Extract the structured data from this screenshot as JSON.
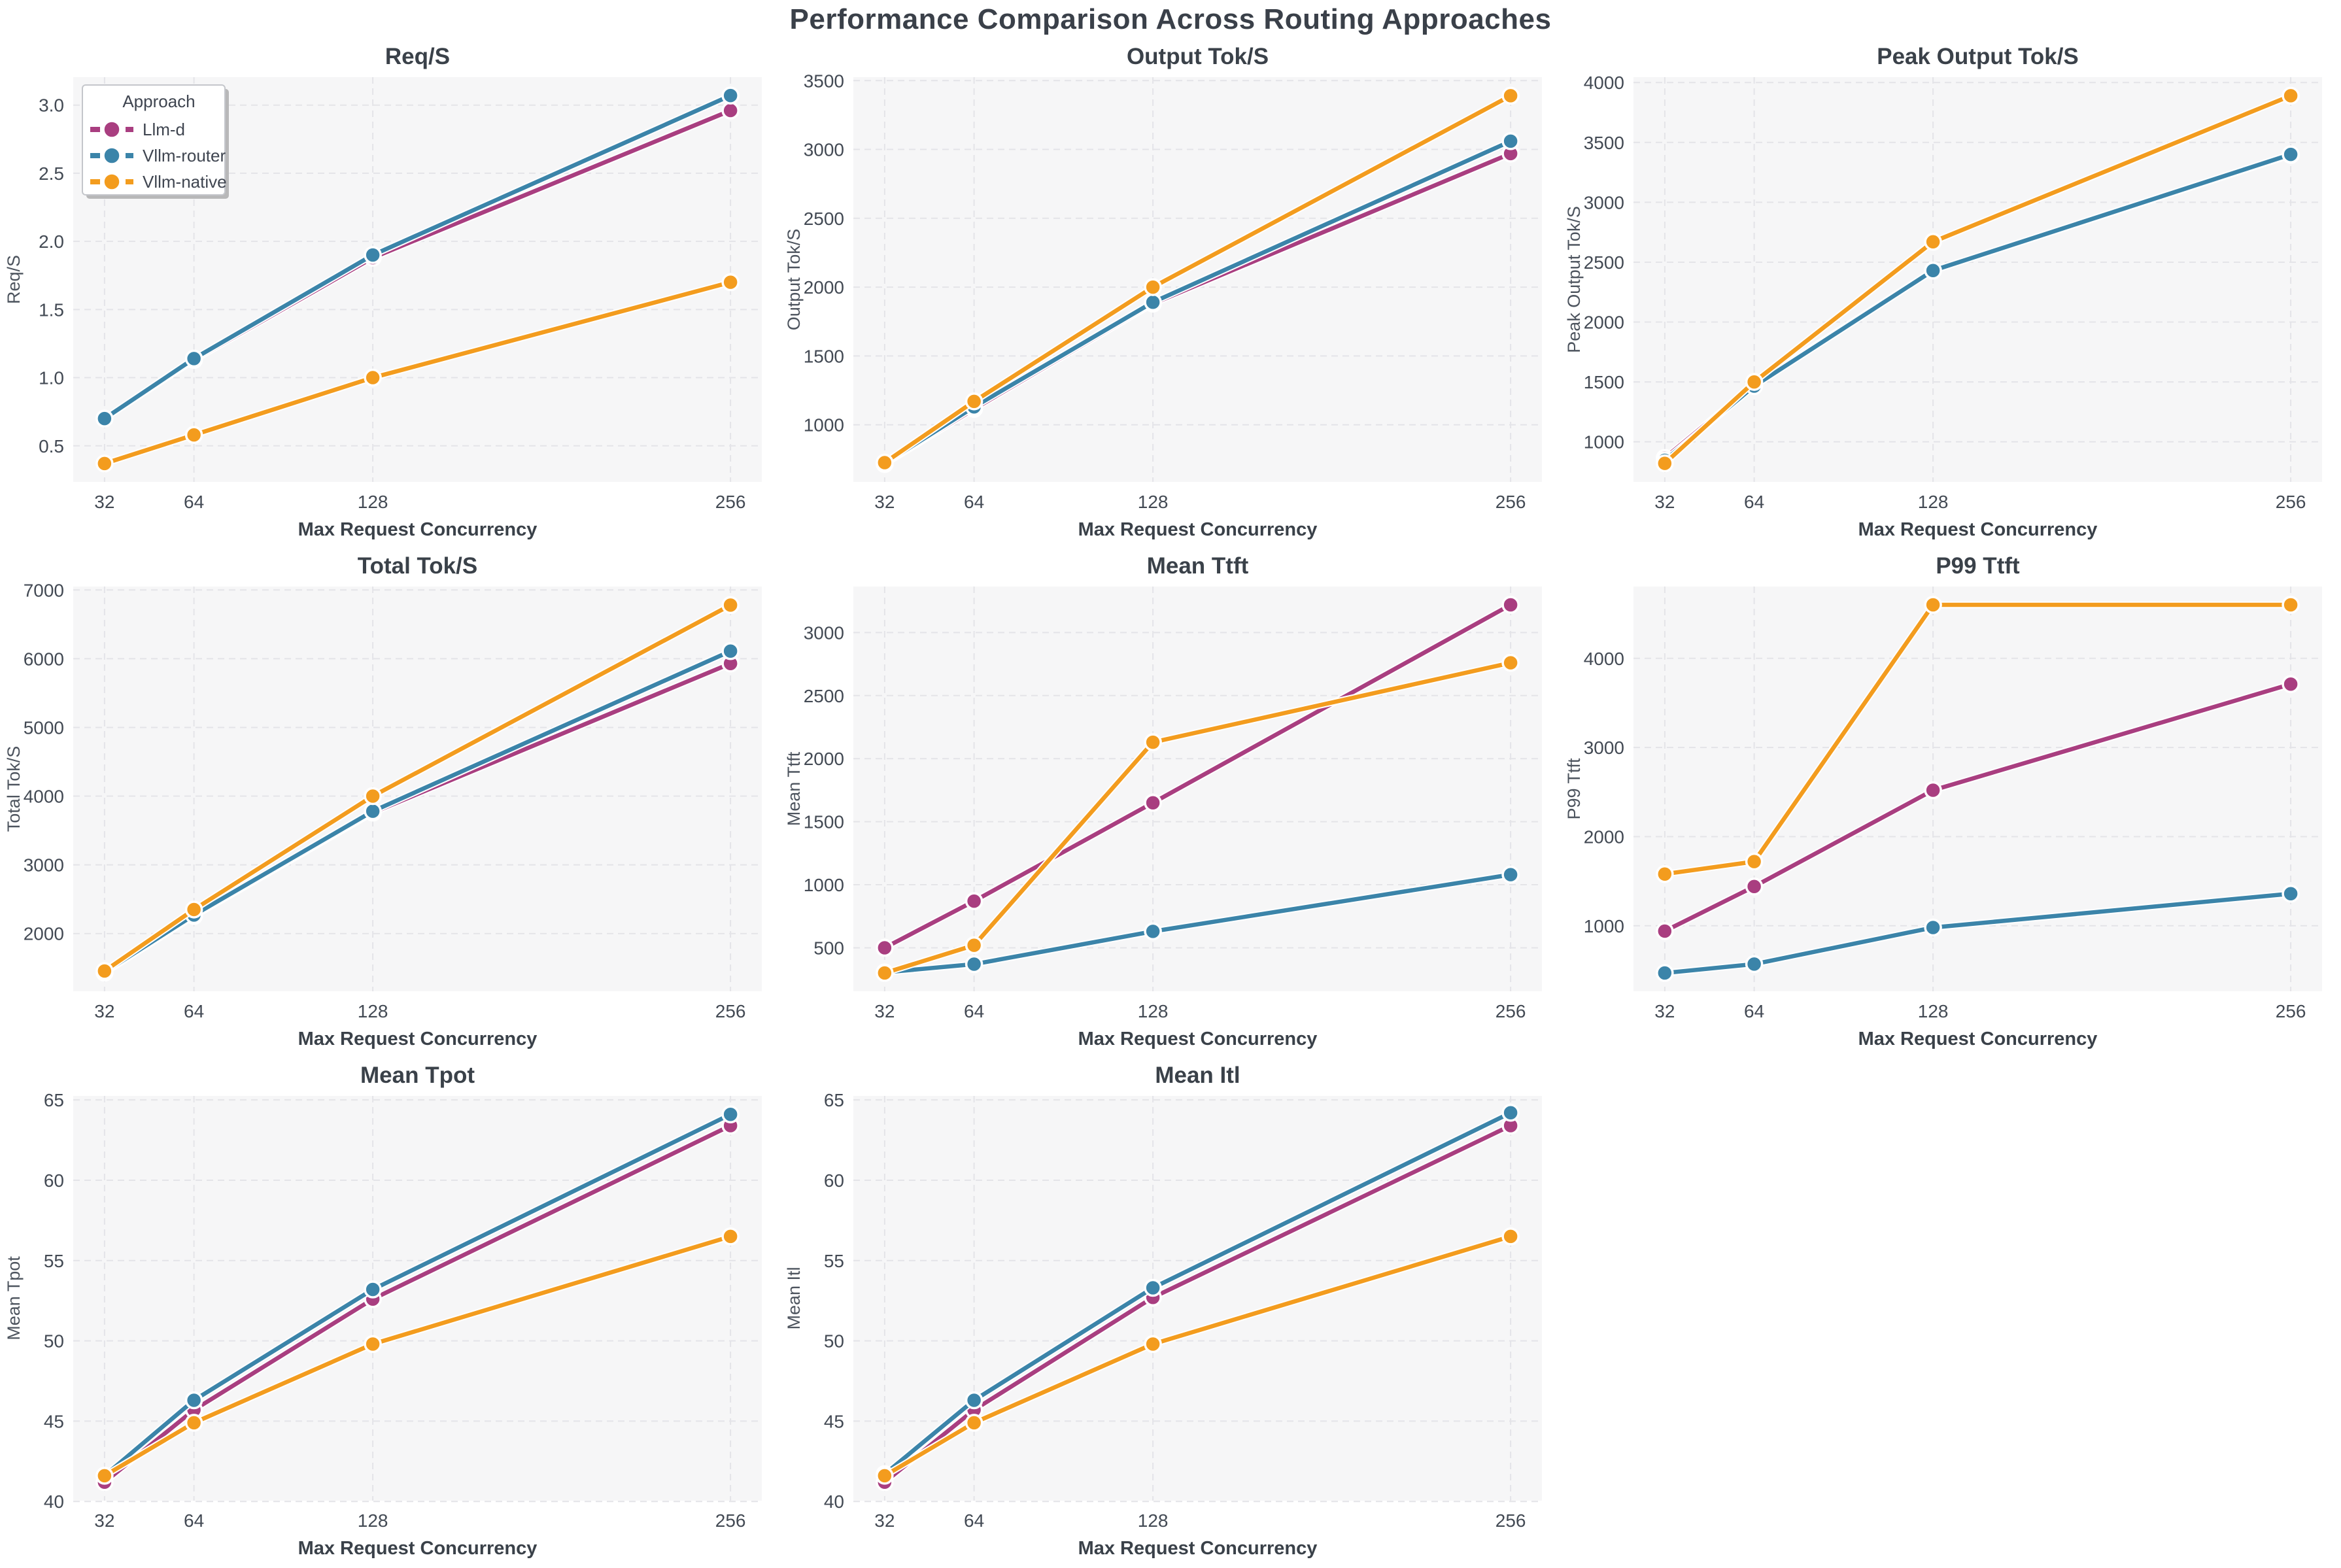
{
  "figure": {
    "title": "Performance Comparison Across Routing Approaches"
  },
  "palette": {
    "llm_d": "#A93E80",
    "vllm_router": "#3B84A9",
    "vllm_native": "#F39C1E"
  },
  "style": {
    "plot_background": "#f6f6f7",
    "grid_color": "#e4e4e8",
    "marker_edge": "#ffffff"
  },
  "legend": {
    "title": "Approach",
    "entries": [
      {
        "label": "Llm-d",
        "color_key": "llm_d"
      },
      {
        "label": "Vllm-router",
        "color_key": "vllm_router"
      },
      {
        "label": "Vllm-native",
        "color_key": "vllm_native"
      }
    ],
    "position": "upper left of first subplot"
  },
  "chart_data": [
    {
      "type": "line",
      "title": "Req/S",
      "xlabel": "Max Request Concurrency",
      "ylabel": "Req/S",
      "x": [
        32,
        64,
        128,
        256
      ],
      "x_tick_labels": [
        "32",
        "64",
        "128",
        "256"
      ],
      "xlim": [
        20.8,
        267.2
      ],
      "ylim": [
        0.235,
        3.205
      ],
      "y_ticks": [
        0.5,
        1.0,
        1.5,
        2.0,
        2.5,
        3.0
      ],
      "y_tick_labels": [
        "0.5",
        "1.0",
        "1.5",
        "2.0",
        "2.5",
        "3.0"
      ],
      "grid": true,
      "legend": true,
      "series": [
        {
          "name": "Llm-d",
          "color_key": "llm_d",
          "values": [
            0.7,
            1.13,
            1.88,
            2.96
          ]
        },
        {
          "name": "Vllm-router",
          "color_key": "vllm_router",
          "values": [
            0.7,
            1.14,
            1.9,
            3.07
          ]
        },
        {
          "name": "Vllm-native",
          "color_key": "vllm_native",
          "values": [
            0.37,
            0.58,
            1.0,
            1.7
          ]
        }
      ]
    },
    {
      "type": "line",
      "title": "Output Tok/S",
      "xlabel": "Max Request Concurrency",
      "ylabel": "Output Tok/S",
      "x": [
        32,
        64,
        128,
        256
      ],
      "x_tick_labels": [
        "32",
        "64",
        "128",
        "256"
      ],
      "xlim": [
        20.8,
        267.2
      ],
      "ylim": [
        585,
        3525
      ],
      "y_ticks": [
        1000,
        1500,
        2000,
        2500,
        3000,
        3500
      ],
      "y_tick_labels": [
        "1000",
        "1500",
        "2000",
        "2500",
        "3000",
        "3500"
      ],
      "grid": true,
      "legend": false,
      "series": [
        {
          "name": "Llm-d",
          "color_key": "llm_d",
          "values": [
            715,
            1115,
            1880,
            2970
          ]
        },
        {
          "name": "Vllm-router",
          "color_key": "vllm_router",
          "values": [
            720,
            1130,
            1890,
            3060
          ]
        },
        {
          "name": "Vllm-native",
          "color_key": "vllm_native",
          "values": [
            725,
            1170,
            2000,
            3390
          ]
        }
      ]
    },
    {
      "type": "line",
      "title": "Peak Output Tok/S",
      "xlabel": "Max Request Concurrency",
      "ylabel": "Peak Output Tok/S",
      "x": [
        32,
        64,
        128,
        256
      ],
      "x_tick_labels": [
        "32",
        "64",
        "128",
        "256"
      ],
      "xlim": [
        20.8,
        267.2
      ],
      "ylim": [
        665,
        4045
      ],
      "y_ticks": [
        1000,
        1500,
        2000,
        2500,
        3000,
        3500,
        4000
      ],
      "y_tick_labels": [
        "1000",
        "1500",
        "2000",
        "2500",
        "3000",
        "3500",
        "4000"
      ],
      "grid": true,
      "legend": false,
      "series": [
        {
          "name": "Llm-d",
          "color_key": "llm_d",
          "values": [
            865,
            1480,
            2430,
            3395
          ]
        },
        {
          "name": "Vllm-router",
          "color_key": "vllm_router",
          "values": [
            845,
            1465,
            2430,
            3400
          ]
        },
        {
          "name": "Vllm-native",
          "color_key": "vllm_native",
          "values": [
            820,
            1500,
            2670,
            3890
          ]
        }
      ]
    },
    {
      "type": "line",
      "title": "Total Tok/S",
      "xlabel": "Max Request Concurrency",
      "ylabel": "Total Tok/S",
      "x": [
        32,
        64,
        128,
        256
      ],
      "x_tick_labels": [
        "32",
        "64",
        "128",
        "256"
      ],
      "xlim": [
        20.8,
        267.2
      ],
      "ylim": [
        1160,
        7050
      ],
      "y_ticks": [
        2000,
        3000,
        4000,
        5000,
        6000,
        7000
      ],
      "y_tick_labels": [
        "2000",
        "3000",
        "4000",
        "5000",
        "6000",
        "7000"
      ],
      "grid": true,
      "legend": false,
      "series": [
        {
          "name": "Llm-d",
          "color_key": "llm_d",
          "values": [
            1430,
            2255,
            3760,
            5930
          ]
        },
        {
          "name": "Vllm-router",
          "color_key": "vllm_router",
          "values": [
            1440,
            2270,
            3780,
            6110
          ]
        },
        {
          "name": "Vllm-native",
          "color_key": "vllm_native",
          "values": [
            1455,
            2350,
            4000,
            6780
          ]
        }
      ]
    },
    {
      "type": "line",
      "title": "Mean Ttft",
      "xlabel": "Max Request Concurrency",
      "ylabel": "Mean Ttft",
      "x": [
        32,
        64,
        128,
        256
      ],
      "x_tick_labels": [
        "32",
        "64",
        "128",
        "256"
      ],
      "xlim": [
        20.8,
        267.2
      ],
      "ylim": [
        155,
        3365
      ],
      "y_ticks": [
        500,
        1000,
        1500,
        2000,
        2500,
        3000
      ],
      "y_tick_labels": [
        "500",
        "1000",
        "1500",
        "2000",
        "2500",
        "3000"
      ],
      "grid": true,
      "legend": false,
      "series": [
        {
          "name": "Llm-d",
          "color_key": "llm_d",
          "values": [
            500,
            870,
            1650,
            3220
          ]
        },
        {
          "name": "Vllm-router",
          "color_key": "vllm_router",
          "values": [
            305,
            370,
            630,
            1080
          ]
        },
        {
          "name": "Vllm-native",
          "color_key": "vllm_native",
          "values": [
            300,
            520,
            2130,
            2760
          ]
        }
      ]
    },
    {
      "type": "line",
      "title": "P99 Ttft",
      "xlabel": "Max Request Concurrency",
      "ylabel": "P99 Ttft",
      "x": [
        32,
        64,
        128,
        256
      ],
      "x_tick_labels": [
        "32",
        "64",
        "128",
        "256"
      ],
      "xlim": [
        20.8,
        267.2
      ],
      "ylim": [
        265,
        4805
      ],
      "y_ticks": [
        1000,
        2000,
        3000,
        4000
      ],
      "y_tick_labels": [
        "1000",
        "2000",
        "3000",
        "4000"
      ],
      "grid": true,
      "legend": false,
      "series": [
        {
          "name": "Llm-d",
          "color_key": "llm_d",
          "values": [
            940,
            1440,
            2520,
            3710
          ]
        },
        {
          "name": "Vllm-router",
          "color_key": "vllm_router",
          "values": [
            470,
            570,
            980,
            1360
          ]
        },
        {
          "name": "Vllm-native",
          "color_key": "vllm_native",
          "values": [
            1580,
            1720,
            4600,
            4600
          ]
        }
      ]
    },
    {
      "type": "line",
      "title": "Mean Tpot",
      "xlabel": "Max Request Concurrency",
      "ylabel": "Mean Tpot",
      "x": [
        32,
        64,
        128,
        256
      ],
      "x_tick_labels": [
        "32",
        "64",
        "128",
        "256"
      ],
      "xlim": [
        20.8,
        267.2
      ],
      "ylim": [
        40.05,
        65.25
      ],
      "y_ticks": [
        40,
        45,
        50,
        55,
        60,
        65
      ],
      "y_tick_labels": [
        "40",
        "45",
        "50",
        "55",
        "60",
        "65"
      ],
      "grid": true,
      "legend": false,
      "series": [
        {
          "name": "Llm-d",
          "color_key": "llm_d",
          "values": [
            41.2,
            45.7,
            52.6,
            63.4
          ]
        },
        {
          "name": "Vllm-router",
          "color_key": "vllm_router",
          "values": [
            41.6,
            46.3,
            53.2,
            64.1
          ]
        },
        {
          "name": "Vllm-native",
          "color_key": "vllm_native",
          "values": [
            41.6,
            44.9,
            49.8,
            56.5
          ]
        }
      ]
    },
    {
      "type": "line",
      "title": "Mean Itl",
      "xlabel": "Max Request Concurrency",
      "ylabel": "Mean Itl",
      "x": [
        32,
        64,
        128,
        256
      ],
      "x_tick_labels": [
        "32",
        "64",
        "128",
        "256"
      ],
      "xlim": [
        20.8,
        267.2
      ],
      "ylim": [
        40.05,
        65.25
      ],
      "y_ticks": [
        40,
        45,
        50,
        55,
        60,
        65
      ],
      "y_tick_labels": [
        "40",
        "45",
        "50",
        "55",
        "60",
        "65"
      ],
      "grid": true,
      "legend": false,
      "series": [
        {
          "name": "Llm-d",
          "color_key": "llm_d",
          "values": [
            41.2,
            45.7,
            52.7,
            63.4
          ]
        },
        {
          "name": "Vllm-router",
          "color_key": "vllm_router",
          "values": [
            41.7,
            46.3,
            53.3,
            64.2
          ]
        },
        {
          "name": "Vllm-native",
          "color_key": "vllm_native",
          "values": [
            41.6,
            44.9,
            49.8,
            56.5
          ]
        }
      ]
    }
  ]
}
